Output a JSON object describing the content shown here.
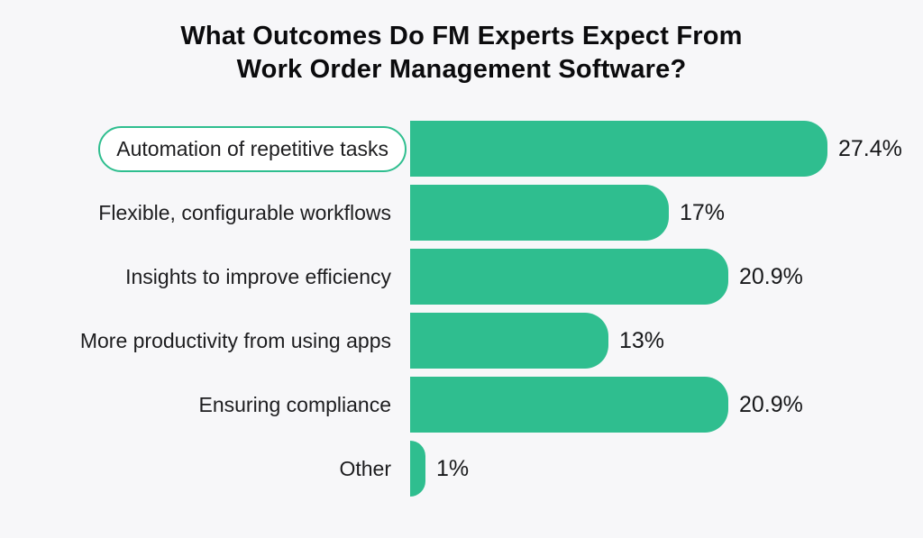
{
  "title": {
    "line1": "What Outcomes Do FM Experts Expect From",
    "line2": "Work Order Management Software?"
  },
  "colors": {
    "bar_green": "#2fbe8f",
    "background": "#f7f7f9",
    "title_text": "#0b0b0d",
    "label_text": "#1d1d1f"
  },
  "chart_data": {
    "type": "bar",
    "orientation": "horizontal",
    "title": "What Outcomes Do FM Experts Expect From Work Order Management Software?",
    "categories": [
      "Automation of repetitive tasks",
      "Flexible, configurable workflows",
      "Insights to improve efficiency",
      "More productivity from using apps",
      "Ensuring compliance",
      "Other"
    ],
    "values": [
      27.4,
      17,
      20.9,
      13,
      20.9,
      1
    ],
    "value_labels": [
      "27.4%",
      "17%",
      "20.9%",
      "13%",
      "20.9%",
      "1%"
    ],
    "highlighted_category_index": 0,
    "xlabel": "",
    "ylabel": "",
    "xlim": [
      0,
      30
    ],
    "grid": false,
    "legend": "none",
    "data_labels": "outside-end"
  }
}
